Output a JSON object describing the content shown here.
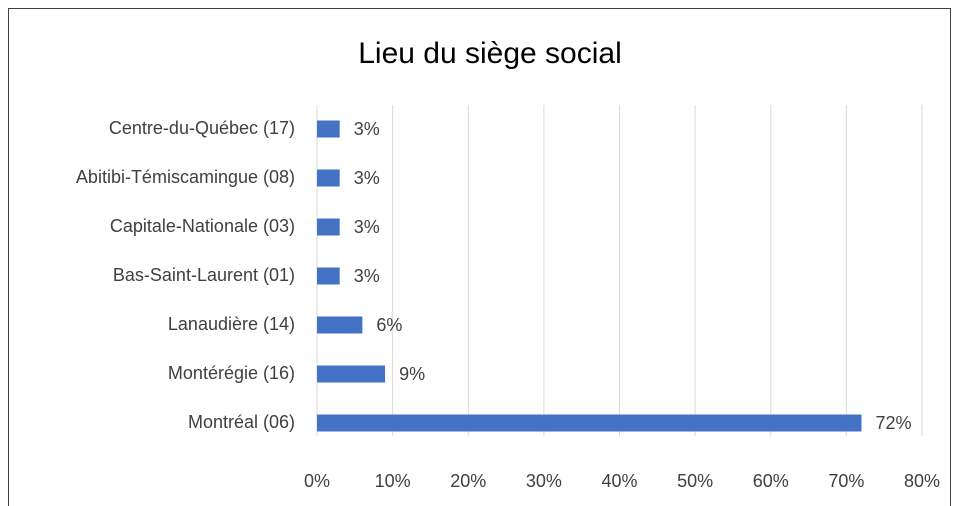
{
  "chart_data": {
    "type": "barh",
    "title": "Lieu du siège social",
    "categories": [
      "Centre-du-Québec (17)",
      "Abitibi-Témiscamingue (08)",
      "Capitale-Nationale (03)",
      "Bas-Saint-Laurent (01)",
      "Lanaudière (14)",
      "Montérégie (16)",
      "Montréal (06)"
    ],
    "values": [
      3,
      3,
      3,
      3,
      6,
      9,
      72
    ],
    "value_labels": [
      "3%",
      "3%",
      "3%",
      "3%",
      "6%",
      "9%",
      "72%"
    ],
    "color": "#4472c4",
    "xlim": [
      0,
      80
    ],
    "xticks": [
      {
        "value": 0,
        "label": "0%"
      },
      {
        "value": 10,
        "label": "10%"
      },
      {
        "value": 20,
        "label": "20%"
      },
      {
        "value": 30,
        "label": "30%"
      },
      {
        "value": 40,
        "label": "40%"
      },
      {
        "value": 50,
        "label": "50%"
      },
      {
        "value": 60,
        "label": "60%"
      },
      {
        "value": 70,
        "label": "70%"
      },
      {
        "value": 80,
        "label": "80%"
      }
    ],
    "grid": true
  }
}
